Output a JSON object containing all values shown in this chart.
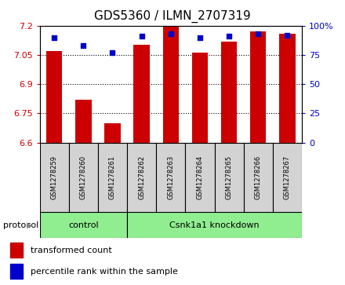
{
  "title": "GDS5360 / ILMN_2707319",
  "samples": [
    "GSM1278259",
    "GSM1278260",
    "GSM1278261",
    "GSM1278262",
    "GSM1278263",
    "GSM1278264",
    "GSM1278265",
    "GSM1278266",
    "GSM1278267"
  ],
  "transformed_count": [
    7.07,
    6.82,
    6.7,
    7.1,
    7.2,
    7.06,
    7.12,
    7.17,
    7.16
  ],
  "percentile_rank": [
    90,
    83,
    77,
    91,
    93,
    90,
    91,
    93,
    92
  ],
  "ylim_left": [
    6.6,
    7.2
  ],
  "ylim_right": [
    0,
    100
  ],
  "yticks_left": [
    6.6,
    6.75,
    6.9,
    7.05,
    7.2
  ],
  "yticks_right": [
    0,
    25,
    50,
    75,
    100
  ],
  "ytick_labels_left": [
    "6.6",
    "6.75",
    "6.9",
    "7.05",
    "7.2"
  ],
  "ytick_labels_right": [
    "0",
    "25",
    "50",
    "75",
    "100%"
  ],
  "bar_color": "#cc0000",
  "dot_color": "#0000cc",
  "bar_width": 0.55,
  "groups": [
    {
      "label": "control",
      "indices": [
        0,
        1,
        2
      ],
      "color": "#90ee90"
    },
    {
      "label": "Csnk1a1 knockdown",
      "indices": [
        3,
        4,
        5,
        6,
        7,
        8
      ],
      "color": "#90ee90"
    }
  ],
  "protocol_label": "protocol",
  "legend_items": [
    {
      "label": "transformed count",
      "color": "#cc0000"
    },
    {
      "label": "percentile rank within the sample",
      "color": "#0000cc"
    }
  ],
  "background_color": "#ffffff",
  "label_area_bg": "#d3d3d3",
  "title_fontsize": 11,
  "tick_fontsize": 8,
  "sample_fontsize": 6,
  "legend_fontsize": 8,
  "proto_fontsize": 8
}
